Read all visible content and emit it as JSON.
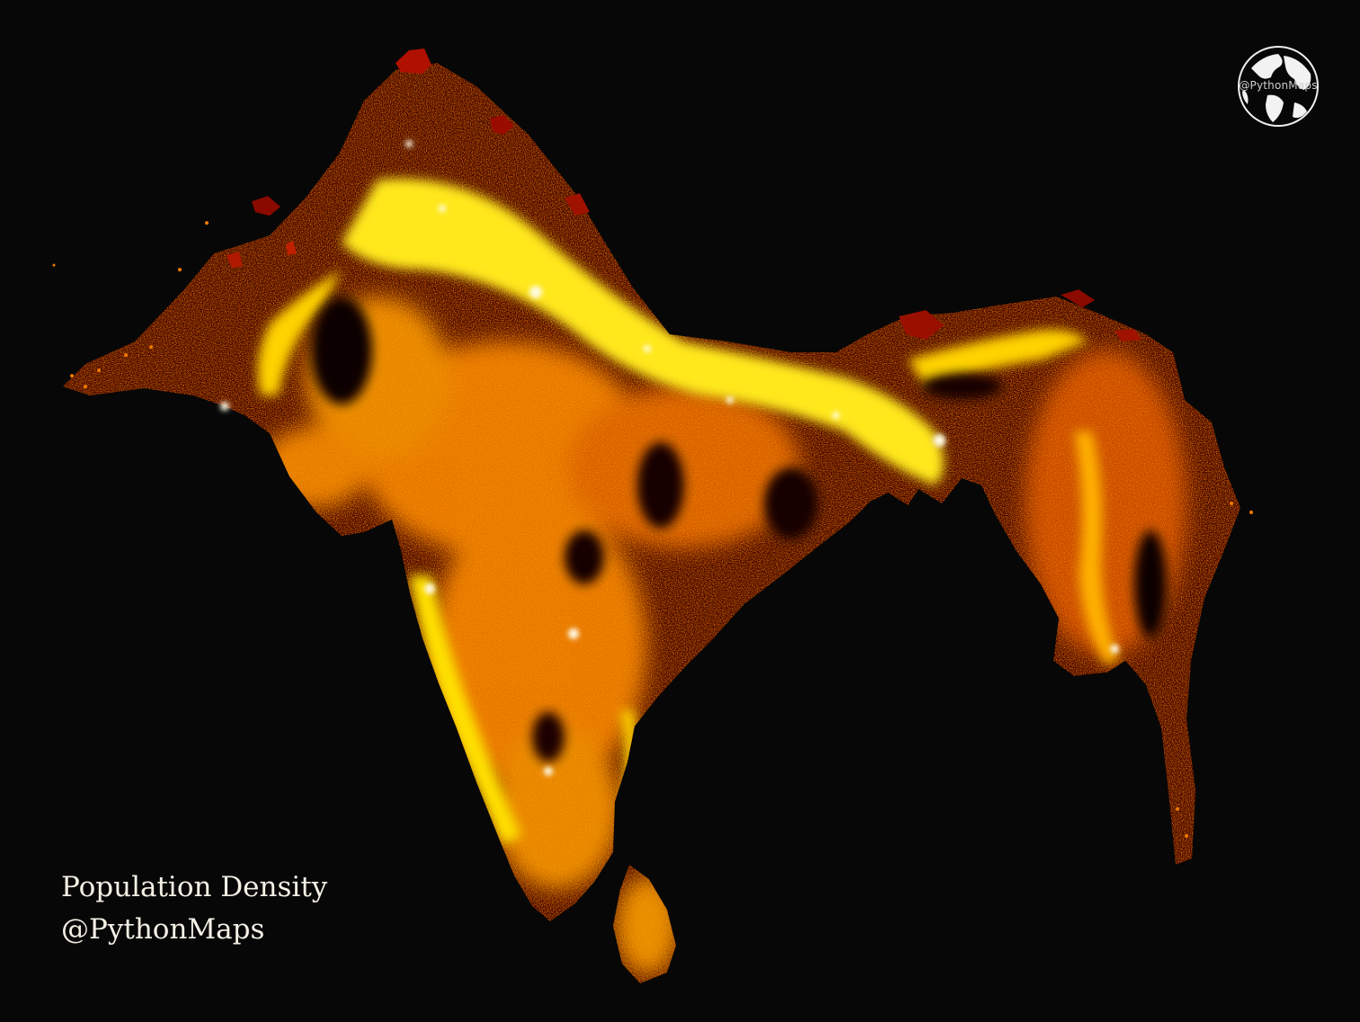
{
  "caption": {
    "title": "Population Density",
    "credit": "@PythonMaps"
  },
  "logo": {
    "text": "@PythonMaps",
    "icon": "globe-icon"
  },
  "colors": {
    "background": "#070707",
    "low": "#6e0c00",
    "mid_low": "#c02a00",
    "mid": "#f07a00",
    "mid_high": "#ffb400",
    "high": "#ffe81a",
    "peak": "#fffbe6"
  }
}
